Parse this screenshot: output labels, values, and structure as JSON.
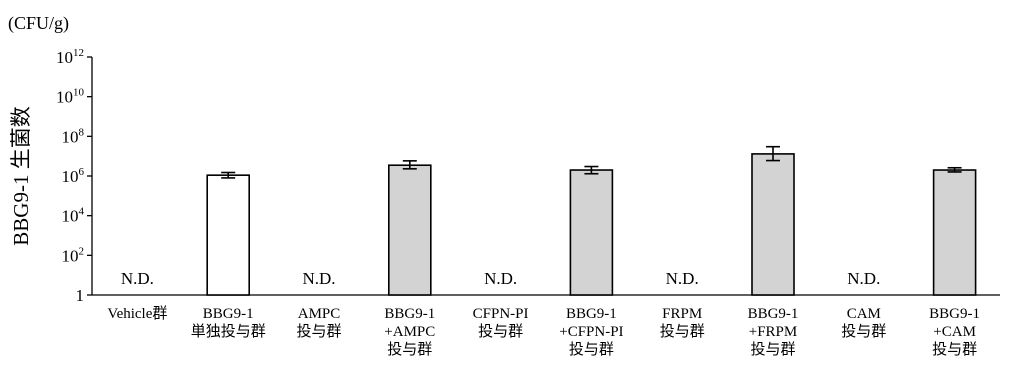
{
  "chart_data": {
    "type": "bar",
    "y_scale": "log",
    "unit_label": "(CFU/g)",
    "ylabel": "BBG9-1 生菌数",
    "ylim": [
      1,
      1000000000000
    ],
    "y_ticks": [
      {
        "base": "10",
        "exp": "12",
        "value": 1000000000000
      },
      {
        "base": "10",
        "exp": "10",
        "value": 10000000000
      },
      {
        "base": "10",
        "exp": "8",
        "value": 100000000
      },
      {
        "base": "10",
        "exp": "6",
        "value": 1000000
      },
      {
        "base": "10",
        "exp": "4",
        "value": 10000
      },
      {
        "base": "10",
        "exp": "2",
        "value": 100
      },
      {
        "base": "1",
        "exp": "",
        "value": 1
      }
    ],
    "categories": [
      [
        "Vehicle群"
      ],
      [
        "BBG9-1",
        "単独投与群"
      ],
      [
        "AMPC",
        "投与群"
      ],
      [
        "BBG9-1",
        "+AMPC",
        "投与群"
      ],
      [
        "CFPN-PI",
        "投与群"
      ],
      [
        "BBG9-1",
        "+CFPN-PI",
        "投与群"
      ],
      [
        "FRPM",
        "投与群"
      ],
      [
        "BBG9-1",
        "+FRPM",
        "投与群"
      ],
      [
        "CAM",
        "投与群"
      ],
      [
        "BBG9-1",
        "+CAM",
        "投与群"
      ]
    ],
    "values": [
      null,
      1100000,
      null,
      3500000,
      null,
      2000000,
      null,
      13000000,
      null,
      2000000
    ],
    "error_low": [
      null,
      800000,
      null,
      2300000,
      null,
      1300000,
      null,
      6000000,
      null,
      1600000
    ],
    "error_high": [
      null,
      1500000,
      null,
      5800000,
      null,
      3000000,
      null,
      30000000,
      null,
      2600000
    ],
    "nd_label": "N.D.",
    "nd_mask": [
      true,
      false,
      true,
      false,
      true,
      false,
      true,
      false,
      true,
      false
    ],
    "bar_colors": [
      "#ffffff",
      "#ffffff",
      "#d3d3d3",
      "#d3d3d3",
      "#d3d3d3",
      "#d3d3d3",
      "#d3d3d3",
      "#d3d3d3",
      "#d3d3d3",
      "#d3d3d3"
    ],
    "grid": false,
    "legend": "none"
  }
}
